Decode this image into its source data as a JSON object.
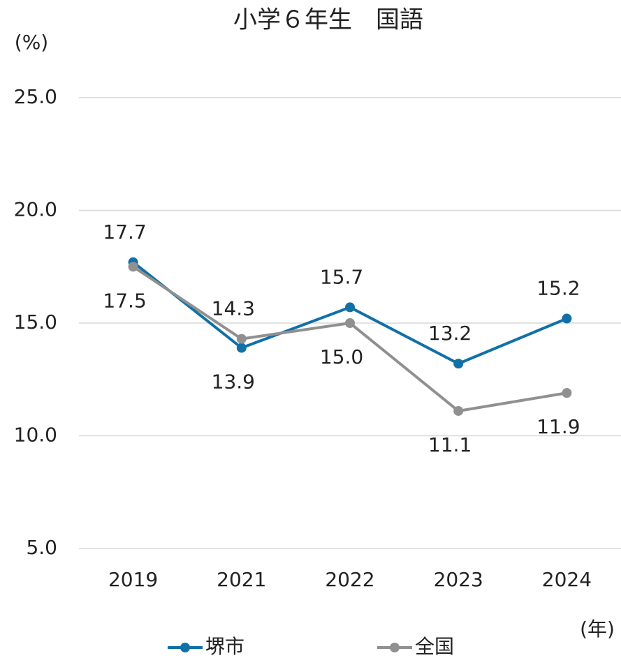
{
  "chart_data": {
    "type": "line",
    "title": "小学６年生　国語",
    "y_label": "(%)",
    "x_label": "(年)",
    "categories": [
      "2019",
      "2021",
      "2022",
      "2023",
      "2024"
    ],
    "series": [
      {
        "name": "堺市",
        "color": "#1070a8",
        "values": [
          17.7,
          13.9,
          15.7,
          13.2,
          15.2
        ],
        "value_labels": [
          "17.7",
          "13.9",
          "15.7",
          "13.2",
          "15.2"
        ]
      },
      {
        "name": "全国",
        "color": "#909090",
        "values": [
          17.5,
          14.3,
          15.0,
          11.1,
          11.9
        ],
        "value_labels": [
          "17.5",
          "14.3",
          "15.0",
          "11.1",
          "11.9"
        ]
      }
    ],
    "ylim": [
      5,
      25
    ],
    "yticks": [
      {
        "value": 5,
        "label": "5.0"
      },
      {
        "value": 10,
        "label": "10.0"
      },
      {
        "value": 15,
        "label": "15.0"
      },
      {
        "value": 20,
        "label": "20.0"
      },
      {
        "value": 25,
        "label": "25.0"
      }
    ],
    "grid": true,
    "legend": "bottom"
  }
}
